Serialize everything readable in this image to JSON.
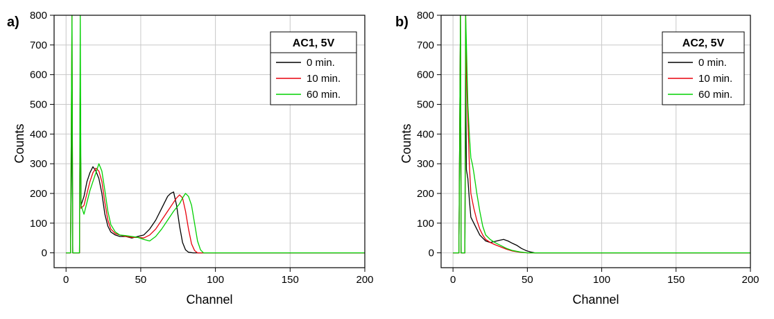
{
  "chart_data": [
    {
      "type": "line",
      "panel_label": "a)",
      "legend_title": "AC1, 5V",
      "xlabel": "Channel",
      "ylabel": "Counts",
      "xlim": [
        -8,
        200
      ],
      "ylim": [
        -50,
        800
      ],
      "xticks": [
        0,
        50,
        100,
        150,
        200
      ],
      "yticks": [
        0,
        100,
        200,
        300,
        400,
        500,
        600,
        700,
        800
      ],
      "grid": true,
      "legend_position": "top-right",
      "series": [
        {
          "name": "0 min.",
          "color": "#000000",
          "x": [
            0,
            3,
            4,
            4.5,
            9,
            9.5,
            10,
            12,
            14,
            16,
            18,
            20,
            22,
            24,
            26,
            28,
            30,
            33,
            36,
            40,
            44,
            48,
            52,
            56,
            60,
            64,
            68,
            70,
            72,
            74,
            76,
            78,
            80,
            82,
            85,
            100,
            200
          ],
          "y": [
            0,
            0,
            520,
            0,
            0,
            590,
            160,
            190,
            240,
            270,
            290,
            275,
            250,
            200,
            130,
            90,
            70,
            60,
            55,
            55,
            50,
            55,
            60,
            80,
            110,
            150,
            190,
            200,
            205,
            160,
            90,
            35,
            10,
            2,
            0,
            0,
            0
          ]
        },
        {
          "name": "10 min.",
          "color": "#e8000b",
          "x": [
            0,
            3,
            4,
            4.5,
            9,
            9.5,
            10,
            12,
            14,
            16,
            18,
            20,
            22,
            24,
            26,
            28,
            30,
            33,
            36,
            40,
            44,
            48,
            52,
            56,
            60,
            64,
            68,
            72,
            74,
            76,
            78,
            80,
            82,
            84,
            86,
            88,
            100,
            200
          ],
          "y": [
            0,
            0,
            800,
            0,
            0,
            580,
            150,
            160,
            200,
            240,
            270,
            285,
            275,
            240,
            170,
            110,
            80,
            65,
            60,
            55,
            52,
            52,
            50,
            60,
            80,
            110,
            140,
            170,
            185,
            195,
            185,
            140,
            80,
            30,
            8,
            0,
            0,
            0
          ]
        },
        {
          "name": "60 min.",
          "color": "#00d000",
          "x": [
            0,
            3,
            4,
            4.5,
            9,
            9.5,
            10,
            12,
            14,
            16,
            18,
            20,
            22,
            24,
            26,
            28,
            30,
            33,
            36,
            40,
            44,
            48,
            52,
            56,
            60,
            64,
            68,
            72,
            76,
            78,
            80,
            82,
            84,
            86,
            88,
            90,
            92,
            100,
            200
          ],
          "y": [
            0,
            0,
            800,
            0,
            0,
            800,
            160,
            130,
            170,
            210,
            240,
            270,
            300,
            275,
            210,
            140,
            95,
            70,
            60,
            58,
            55,
            52,
            45,
            40,
            55,
            80,
            110,
            140,
            165,
            185,
            200,
            190,
            160,
            100,
            40,
            10,
            0,
            0,
            0
          ]
        }
      ]
    },
    {
      "type": "line",
      "panel_label": "b)",
      "legend_title": "AC2, 5V",
      "xlabel": "Channel",
      "ylabel": "Counts",
      "xlim": [
        -8,
        200
      ],
      "ylim": [
        -50,
        800
      ],
      "xticks": [
        0,
        50,
        100,
        150,
        200
      ],
      "yticks": [
        0,
        100,
        200,
        300,
        400,
        500,
        600,
        700,
        800
      ],
      "grid": true,
      "legend_position": "top-right",
      "series": [
        {
          "name": "0 min.",
          "color": "#000000",
          "x": [
            0,
            4,
            5,
            5.5,
            8,
            8.5,
            9,
            10,
            11,
            12,
            14,
            16,
            18,
            20,
            22,
            25,
            28,
            31,
            34,
            37,
            40,
            43,
            46,
            49,
            52,
            55,
            60,
            200
          ],
          "y": [
            0,
            0,
            800,
            0,
            0,
            600,
            280,
            250,
            180,
            120,
            100,
            80,
            60,
            50,
            40,
            35,
            38,
            42,
            45,
            40,
            32,
            25,
            15,
            8,
            3,
            0,
            0,
            0
          ]
        },
        {
          "name": "10 min.",
          "color": "#e8000b",
          "x": [
            0,
            4,
            5,
            5.5,
            8,
            8.5,
            9,
            10,
            11,
            12,
            14,
            16,
            18,
            20,
            22,
            25,
            28,
            32,
            36,
            40,
            45,
            50,
            55,
            200
          ],
          "y": [
            0,
            0,
            800,
            0,
            0,
            800,
            600,
            450,
            300,
            200,
            150,
            110,
            80,
            60,
            45,
            35,
            28,
            20,
            12,
            6,
            2,
            0,
            0,
            0
          ]
        },
        {
          "name": "60 min.",
          "color": "#00d000",
          "x": [
            0,
            4,
            5,
            5.5,
            8,
            8.5,
            9,
            10,
            11,
            12,
            13,
            14,
            16,
            18,
            20,
            22,
            25,
            28,
            32,
            36,
            40,
            45,
            50,
            55,
            200
          ],
          "y": [
            0,
            0,
            800,
            0,
            0,
            800,
            700,
            500,
            400,
            320,
            300,
            270,
            200,
            140,
            90,
            60,
            45,
            35,
            25,
            15,
            8,
            3,
            0,
            0,
            0
          ]
        }
      ]
    }
  ]
}
